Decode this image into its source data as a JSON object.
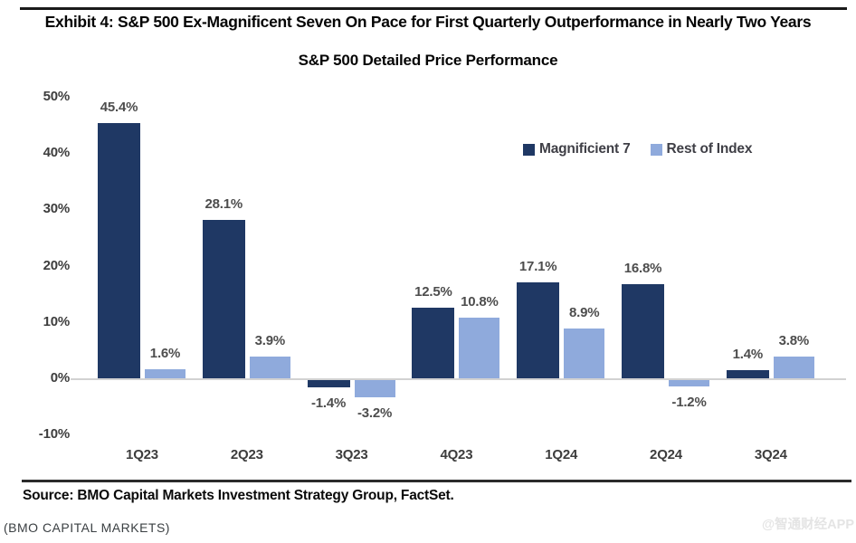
{
  "header": {
    "title": "Exhibit 4: S&P 500 Ex-Magnificent Seven On Pace for First Quarterly Outperformance in Nearly Two Years",
    "subtitle": "S&P 500 Detailed Price Performance"
  },
  "chart_data": {
    "type": "bar",
    "categories": [
      "1Q23",
      "2Q23",
      "3Q23",
      "4Q23",
      "1Q24",
      "2Q24",
      "3Q24"
    ],
    "series": [
      {
        "name": "Magnificient 7",
        "color": "#1f3864",
        "values": [
          45.4,
          28.1,
          -1.4,
          12.5,
          17.1,
          16.8,
          1.4
        ]
      },
      {
        "name": "Rest of Index",
        "color": "#8faadc",
        "values": [
          1.6,
          3.9,
          -3.2,
          10.8,
          8.9,
          -1.2,
          3.8
        ]
      }
    ],
    "y_ticks": [
      "50%",
      "40%",
      "30%",
      "20%",
      "10%",
      "0%",
      "-10%"
    ],
    "y_tick_values": [
      50,
      40,
      30,
      20,
      10,
      0,
      -10
    ],
    "ylim": [
      -10,
      50
    ],
    "grid": false,
    "legend_position": "top-right",
    "value_label_suffix": "%"
  },
  "footer": {
    "source": "Source: BMO Capital Markets Investment Strategy Group, FactSet.",
    "credit": "(BMO CAPITAL MARKETS)",
    "watermark": "@智通财经APP"
  },
  "colors": {
    "bar_dark": "#1f3864",
    "bar_light": "#8faadc",
    "baseline": "#d2d2d2",
    "rule": "#1a1a1a",
    "value_label": "#4d4d4d",
    "axis_label": "#3d3d3d"
  }
}
